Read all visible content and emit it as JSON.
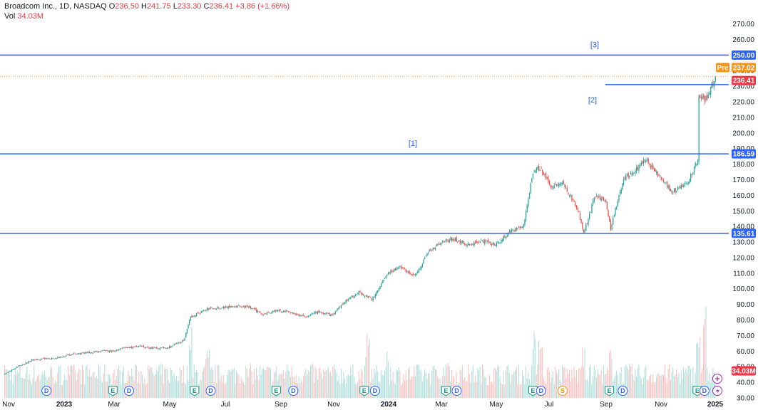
{
  "legend": {
    "symbol": "Broadcom Inc., 1D, NASDAQ",
    "o_label": "O",
    "o": "236.50",
    "h_label": "H",
    "h": "241.75",
    "l_label": "L",
    "l": "233.30",
    "c_label": "C",
    "c": "236.41",
    "change": "+3.86 (+1.66%)",
    "vol_label": "Vol",
    "vol": "34.03M"
  },
  "colors": {
    "up": "#26a69a",
    "down": "#ef5350",
    "level": "#2962ff",
    "pre": "#f7931a",
    "last": "#f23645"
  },
  "chart_data": {
    "type": "candlestick",
    "y_ticks": [
      "30.00",
      "40.00",
      "50.00",
      "60.00",
      "70.00",
      "80.00",
      "90.00",
      "100.00",
      "110.00",
      "120.00",
      "130.00",
      "140.00",
      "150.00",
      "160.00",
      "170.00",
      "180.00",
      "190.00",
      "200.00",
      "210.00",
      "220.00",
      "230.00",
      "240.00",
      "250.00",
      "260.00",
      "270.00"
    ],
    "x_ticks": [
      "Nov",
      "2023",
      "Mar",
      "May",
      "Jul",
      "Sep",
      "Nov",
      "2024",
      "Mar",
      "May",
      "Jul",
      "Sep",
      "Nov",
      "2025"
    ],
    "ylim": [
      25,
      272
    ],
    "levels": [
      {
        "value": 250.0,
        "label": "250.00",
        "note": "[3]"
      },
      {
        "value": 186.59,
        "label": "186.59",
        "note": "[1]"
      },
      {
        "value": 135.61,
        "label": "135.61",
        "note": ""
      },
      {
        "value": 231,
        "label": "",
        "note": "[2]"
      }
    ],
    "price_tags": [
      {
        "label": "237.02",
        "prefix": "Pre"
      },
      {
        "label": "236.41",
        "prefix": ""
      }
    ],
    "volume_tag": "34.03M",
    "price_path": [
      [
        "2022-11-01",
        45
      ],
      [
        "2022-11-15",
        50
      ],
      [
        "2022-12-01",
        54
      ],
      [
        "2022-12-15",
        55
      ],
      [
        "2023-01-01",
        56
      ],
      [
        "2023-01-15",
        58
      ],
      [
        "2023-02-01",
        59
      ],
      [
        "2023-02-15",
        60
      ],
      [
        "2023-03-01",
        60
      ],
      [
        "2023-03-15",
        62
      ],
      [
        "2023-04-01",
        63
      ],
      [
        "2023-04-15",
        62
      ],
      [
        "2023-05-01",
        62
      ],
      [
        "2023-05-20",
        67
      ],
      [
        "2023-05-27",
        82
      ],
      [
        "2023-06-15",
        87
      ],
      [
        "2023-07-01",
        88
      ],
      [
        "2023-07-15",
        89
      ],
      [
        "2023-08-01",
        88
      ],
      [
        "2023-08-15",
        84
      ],
      [
        "2023-09-01",
        86
      ],
      [
        "2023-09-15",
        85
      ],
      [
        "2023-10-01",
        82
      ],
      [
        "2023-10-15",
        85
      ],
      [
        "2023-11-01",
        83
      ],
      [
        "2023-11-15",
        92
      ],
      [
        "2023-12-01",
        98
      ],
      [
        "2023-12-15",
        93
      ],
      [
        "2024-01-01",
        110
      ],
      [
        "2024-01-15",
        114
      ],
      [
        "2024-02-01",
        108
      ],
      [
        "2024-02-15",
        123
      ],
      [
        "2024-03-01",
        130
      ],
      [
        "2024-03-15",
        132
      ],
      [
        "2024-04-01",
        128
      ],
      [
        "2024-04-15",
        131
      ],
      [
        "2024-05-01",
        128
      ],
      [
        "2024-05-15",
        136
      ],
      [
        "2024-06-01",
        140
      ],
      [
        "2024-06-12",
        177
      ],
      [
        "2024-06-20",
        177
      ],
      [
        "2024-07-01",
        166
      ],
      [
        "2024-07-15",
        168
      ],
      [
        "2024-08-01",
        150
      ],
      [
        "2024-08-07",
        136
      ],
      [
        "2024-08-20",
        160
      ],
      [
        "2024-09-01",
        155
      ],
      [
        "2024-09-06",
        139
      ],
      [
        "2024-09-20",
        170
      ],
      [
        "2024-10-01",
        175
      ],
      [
        "2024-10-15",
        183
      ],
      [
        "2024-11-01",
        170
      ],
      [
        "2024-11-15",
        162
      ],
      [
        "2024-12-01",
        168
      ],
      [
        "2024-12-12",
        183
      ],
      [
        "2024-12-13",
        224
      ],
      [
        "2024-12-20",
        220
      ],
      [
        "2025-01-01",
        236.41
      ]
    ],
    "volume_peaks": [
      [
        "2022-11-01",
        0.25
      ],
      [
        "2023-01-01",
        0.2
      ],
      [
        "2023-03-15",
        0.2
      ],
      [
        "2023-05-27",
        0.85
      ],
      [
        "2023-06-15",
        0.55
      ],
      [
        "2023-09-15",
        0.35
      ],
      [
        "2023-12-10",
        0.7
      ],
      [
        "2024-01-01",
        0.5
      ],
      [
        "2024-03-08",
        0.55
      ],
      [
        "2024-06-13",
        0.75
      ],
      [
        "2024-06-20",
        0.65
      ],
      [
        "2024-08-06",
        0.55
      ],
      [
        "2024-09-06",
        0.55
      ],
      [
        "2024-12-13",
        0.9
      ],
      [
        "2024-12-20",
        1.0
      ]
    ],
    "events": [
      {
        "letter": "D",
        "date": "2022-12-18",
        "kind": "dividend"
      },
      {
        "letter": "E",
        "date": "2023-03-02",
        "kind": "earnings"
      },
      {
        "letter": "D",
        "date": "2023-03-20",
        "kind": "dividend"
      },
      {
        "letter": "E",
        "date": "2023-06-01",
        "kind": "earnings"
      },
      {
        "letter": "D",
        "date": "2023-06-19",
        "kind": "dividend"
      },
      {
        "letter": "E",
        "date": "2023-08-31",
        "kind": "earnings"
      },
      {
        "letter": "D",
        "date": "2023-09-19",
        "kind": "dividend"
      },
      {
        "letter": "E",
        "date": "2023-12-07",
        "kind": "earnings"
      },
      {
        "letter": "D",
        "date": "2023-12-19",
        "kind": "dividend"
      },
      {
        "letter": "E",
        "date": "2024-03-07",
        "kind": "earnings"
      },
      {
        "letter": "D",
        "date": "2024-03-19",
        "kind": "dividend"
      },
      {
        "letter": "E",
        "date": "2024-06-12",
        "kind": "earnings"
      },
      {
        "letter": "D",
        "date": "2024-06-21",
        "kind": "dividend"
      },
      {
        "letter": "S",
        "date": "2024-07-15",
        "kind": "split"
      },
      {
        "letter": "E",
        "date": "2024-09-05",
        "kind": "earnings"
      },
      {
        "letter": "D",
        "date": "2024-09-20",
        "kind": "dividend"
      },
      {
        "letter": "E",
        "date": "2024-12-12",
        "kind": "earnings"
      },
      {
        "letter": "D",
        "date": "2024-12-20",
        "kind": "dividend"
      }
    ]
  }
}
